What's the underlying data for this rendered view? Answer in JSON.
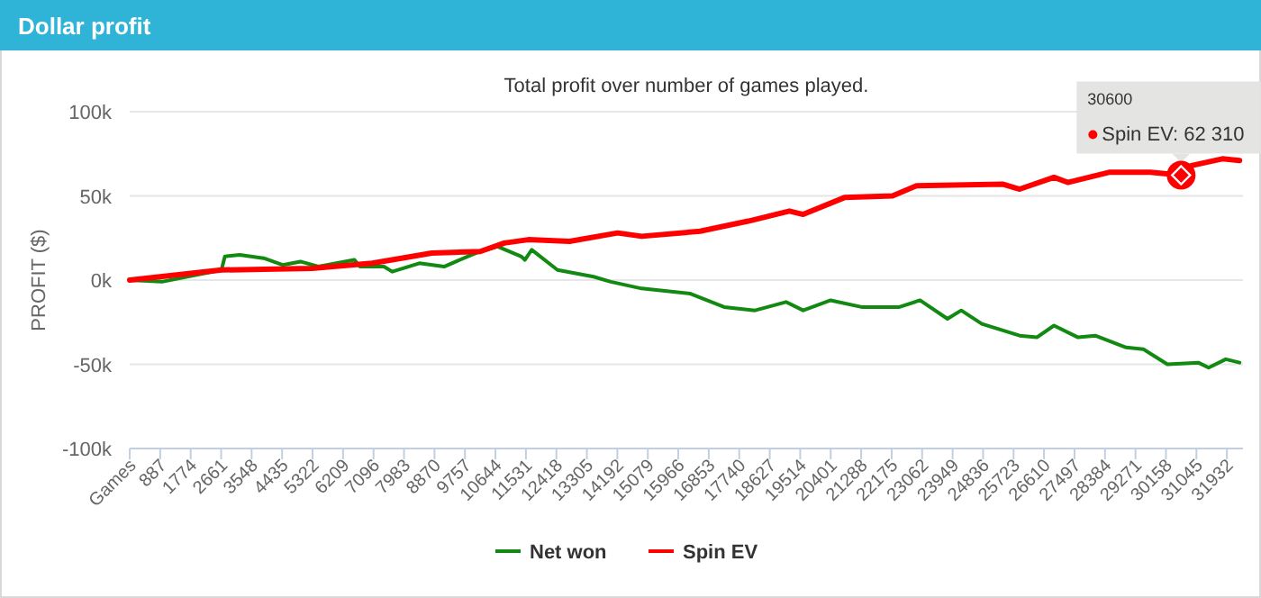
{
  "chart_data": {
    "type": "line",
    "title": "Dollar profit",
    "subtitle": "Total profit over number of games played.",
    "ylabel": "PROFIT ($)",
    "xlim": [
      0,
      32400
    ],
    "xticks": [
      {
        "value": 0,
        "label": "Games"
      },
      887,
      1774,
      2661,
      3548,
      4435,
      5322,
      6209,
      7096,
      7983,
      8870,
      9757,
      10644,
      11531,
      12418,
      13305,
      14192,
      15079,
      15966,
      16853,
      17740,
      18627,
      19514,
      20401,
      21288,
      22175,
      23062,
      23949,
      24836,
      25723,
      26610,
      27497,
      28384,
      29271,
      30158,
      31045,
      31932
    ],
    "ylim": [
      -100000,
      100000
    ],
    "yticks": [
      {
        "value": -100000,
        "label": "-100k"
      },
      {
        "value": -50000,
        "label": "-50k"
      },
      {
        "value": 0,
        "label": "0k"
      },
      {
        "value": 50000,
        "label": "50k"
      },
      {
        "value": 100000,
        "label": "100k"
      }
    ],
    "grid": "y",
    "legend": "bottom",
    "marker": "none",
    "line_style": "solid",
    "series": [
      {
        "name": "Net won",
        "color": "#128a12",
        "x": [
          0,
          940,
          2670,
          2770,
          3200,
          3900,
          4450,
          4970,
          5490,
          6540,
          6700,
          7400,
          7640,
          8430,
          9150,
          9830,
          10200,
          10700,
          11400,
          11500,
          11700,
          12450,
          13500,
          14000,
          14900,
          16300,
          17300,
          18200,
          19100,
          19600,
          20400,
          21300,
          22400,
          23000,
          23800,
          24200,
          24800,
          25900,
          26400,
          26900,
          27600,
          28100,
          29000,
          29500,
          30200,
          31100,
          31400,
          31900,
          32300
        ],
        "values": [
          0,
          -1000,
          6000,
          14000,
          15000,
          13000,
          9000,
          11000,
          8000,
          12000,
          8000,
          8000,
          5000,
          10000,
          8000,
          14000,
          17000,
          20000,
          14000,
          12000,
          18000,
          6000,
          2000,
          -1000,
          -5000,
          -8000,
          -16000,
          -18000,
          -13000,
          -18000,
          -12000,
          -16000,
          -16000,
          -12000,
          -23000,
          -18000,
          -26000,
          -33000,
          -34000,
          -27000,
          -34000,
          -33000,
          -40000,
          -41000,
          -50000,
          -49000,
          -52000,
          -47000,
          -49000
        ]
      },
      {
        "name": "Spin EV",
        "color": "#ff0000",
        "x": [
          0,
          2670,
          5300,
          7060,
          8790,
          10200,
          10900,
          11600,
          12800,
          14200,
          14900,
          16600,
          18000,
          19200,
          19600,
          20800,
          22200,
          22900,
          25400,
          25900,
          26900,
          27300,
          28500,
          29700,
          30600,
          30900,
          31800,
          32300
        ],
        "values": [
          0,
          6000,
          7000,
          10000,
          16000,
          17000,
          22000,
          24000,
          23000,
          28000,
          26000,
          29000,
          35000,
          41000,
          39000,
          49000,
          50000,
          56000,
          57000,
          54000,
          61000,
          58000,
          64000,
          64000,
          62310,
          68000,
          72000,
          71000
        ]
      }
    ],
    "annotations": [
      "30600",
      {
        "text": "Spin EV: 62 310",
        "x": 30600,
        "y": 62310
      }
    ]
  }
}
